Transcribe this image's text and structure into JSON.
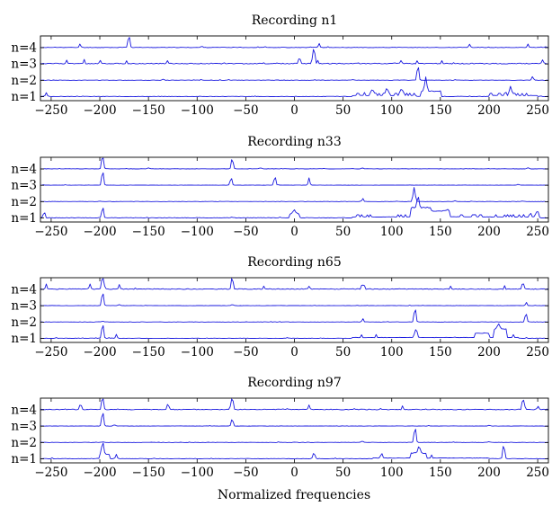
{
  "figure": {
    "xlabel": "Normalized frequencies"
  },
  "chart_data": [
    {
      "type": "line",
      "title": "Recording n1",
      "xlim": [
        -261,
        261
      ],
      "ticks": [
        -250,
        -200,
        -150,
        -100,
        -50,
        0,
        50,
        100,
        150,
        200,
        250
      ],
      "tick_labels": [
        "−250",
        "−200",
        "−150",
        "−100",
        "−50",
        "0",
        "50",
        "100",
        "150",
        "200",
        "250"
      ],
      "rows": [
        "n=4",
        "n=3",
        "n=2",
        "n=1"
      ],
      "series": [
        {
          "label": "n=4",
          "seed": 11,
          "noise": 0.07,
          "peaks": [
            [
              -170,
              0.9
            ],
            [
              -220,
              0.25
            ],
            [
              -95,
              0.2
            ],
            [
              25,
              0.3
            ],
            [
              180,
              0.25
            ],
            [
              240,
              0.25
            ],
            [
              -30,
              0.15
            ]
          ],
          "plateaus": []
        },
        {
          "label": "n=3",
          "seed": 12,
          "noise": 0.16,
          "peaks": [
            [
              20,
              1.15
            ],
            [
              5,
              0.35
            ],
            [
              -130,
              0.2
            ],
            [
              110,
              0.2
            ],
            [
              -200,
              0.2
            ],
            [
              255,
              0.3
            ]
          ],
          "plateaus": []
        },
        {
          "label": "n=2",
          "seed": 13,
          "noise": 0.06,
          "peaks": [
            [
              127,
              1.1
            ],
            [
              -135,
              0.2
            ],
            [
              245,
              0.3
            ],
            [
              60,
              0.12
            ]
          ],
          "plateaus": []
        },
        {
          "label": "n=1",
          "seed": 14,
          "noise": 0.08,
          "peaks": [
            [
              135,
              1.1
            ],
            [
              222,
              0.55
            ],
            [
              95,
              0.45
            ],
            [
              110,
              0.4
            ],
            [
              -255,
              0.3
            ],
            [
              80,
              0.35
            ]
          ],
          "plateaus": [
            [
              60,
              125,
              0.2
            ],
            [
              130,
              150,
              0.4
            ],
            [
              200,
              250,
              0.2
            ]
          ]
        }
      ]
    },
    {
      "type": "line",
      "title": "Recording n33",
      "xlim": [
        -261,
        261
      ],
      "ticks": [
        -250,
        -200,
        -150,
        -100,
        -50,
        0,
        50,
        100,
        150,
        200,
        250
      ],
      "tick_labels": [
        "−250",
        "−200",
        "−150",
        "−100",
        "−50",
        "0",
        "50",
        "100",
        "150",
        "200",
        "250"
      ],
      "rows": [
        "n=4",
        "n=3",
        "n=2",
        "n=1"
      ],
      "series": [
        {
          "label": "n=4",
          "seed": 21,
          "noise": 0.05,
          "peaks": [
            [
              -197,
              1.2
            ],
            [
              -64,
              0.8
            ],
            [
              -150,
              0.2
            ],
            [
              -35,
              0.2
            ],
            [
              70,
              0.15
            ],
            [
              240,
              0.2
            ]
          ],
          "plateaus": []
        },
        {
          "label": "n=3",
          "seed": 22,
          "noise": 0.05,
          "peaks": [
            [
              -197,
              1.1
            ],
            [
              -65,
              0.55
            ],
            [
              -20,
              0.65
            ],
            [
              15,
              0.55
            ],
            [
              230,
              0.15
            ]
          ],
          "plateaus": []
        },
        {
          "label": "n=2",
          "seed": 23,
          "noise": 0.05,
          "peaks": [
            [
              123,
              1.1
            ],
            [
              70,
              0.25
            ],
            [
              165,
              0.15
            ],
            [
              -200,
              0.1
            ]
          ],
          "plateaus": []
        },
        {
          "label": "n=1",
          "seed": 24,
          "noise": 0.09,
          "peaks": [
            [
              -197,
              0.8
            ],
            [
              127,
              0.95
            ],
            [
              0,
              0.3
            ],
            [
              250,
              0.45
            ],
            [
              -257,
              0.4
            ]
          ],
          "plateaus": [
            [
              -5,
              5,
              0.3
            ],
            [
              60,
              250,
              0.18
            ],
            [
              120,
              140,
              0.6
            ],
            [
              140,
              160,
              0.35
            ]
          ]
        }
      ]
    },
    {
      "type": "line",
      "title": "Recording n65",
      "xlim": [
        -261,
        261
      ],
      "ticks": [
        -250,
        -200,
        -150,
        -100,
        -50,
        0,
        50,
        100,
        150,
        200,
        250
      ],
      "tick_labels": [
        "−250",
        "−200",
        "−150",
        "−100",
        "−50",
        "0",
        "50",
        "100",
        "150",
        "200",
        "250"
      ],
      "rows": [
        "n=4",
        "n=3",
        "n=2",
        "n=1"
      ],
      "series": [
        {
          "label": "n=4",
          "seed": 31,
          "noise": 0.13,
          "peaks": [
            [
              -197,
              1.05
            ],
            [
              -64,
              0.95
            ],
            [
              -210,
              0.4
            ],
            [
              -180,
              0.35
            ],
            [
              70,
              0.35
            ],
            [
              235,
              0.45
            ],
            [
              15,
              0.25
            ],
            [
              -255,
              0.3
            ]
          ],
          "plateaus": []
        },
        {
          "label": "n=3",
          "seed": 32,
          "noise": 0.05,
          "peaks": [
            [
              -197,
              1.05
            ],
            [
              -180,
              0.2
            ],
            [
              -64,
              0.2
            ],
            [
              238,
              0.25
            ]
          ],
          "plateaus": []
        },
        {
          "label": "n=2",
          "seed": 33,
          "noise": 0.05,
          "peaks": [
            [
              124,
              1.05
            ],
            [
              238,
              0.65
            ],
            [
              70,
              0.25
            ],
            [
              -197,
              0.15
            ]
          ],
          "plateaus": []
        },
        {
          "label": "n=1",
          "seed": 34,
          "noise": 0.07,
          "peaks": [
            [
              -197,
              1.1
            ],
            [
              125,
              0.6
            ],
            [
              210,
              0.45
            ],
            [
              -183,
              0.3
            ]
          ],
          "plateaus": [
            [
              60,
              230,
              0.15
            ],
            [
              205,
              218,
              0.55
            ],
            [
              185,
              200,
              0.25
            ]
          ]
        }
      ]
    },
    {
      "type": "line",
      "title": "Recording n97",
      "xlim": [
        -261,
        261
      ],
      "ticks": [
        -250,
        -200,
        -150,
        -100,
        -50,
        0,
        50,
        100,
        150,
        200,
        250
      ],
      "tick_labels": [
        "−250",
        "−200",
        "−150",
        "−100",
        "−50",
        "0",
        "50",
        "100",
        "150",
        "200",
        "250"
      ],
      "rows": [
        "n=4",
        "n=3",
        "n=2",
        "n=1"
      ],
      "series": [
        {
          "label": "n=4",
          "seed": 41,
          "noise": 0.13,
          "peaks": [
            [
              -197,
              0.9
            ],
            [
              -64,
              1.05
            ],
            [
              -220,
              0.35
            ],
            [
              235,
              0.8
            ],
            [
              15,
              0.3
            ],
            [
              -130,
              0.25
            ],
            [
              250,
              0.3
            ]
          ],
          "plateaus": []
        },
        {
          "label": "n=3",
          "seed": 42,
          "noise": 0.06,
          "peaks": [
            [
              -197,
              1.1
            ],
            [
              -64,
              0.55
            ],
            [
              -185,
              0.2
            ],
            [
              200,
              0.12
            ]
          ],
          "plateaus": []
        },
        {
          "label": "n=2",
          "seed": 43,
          "noise": 0.05,
          "peaks": [
            [
              124,
              1.15
            ],
            [
              70,
              0.2
            ],
            [
              -197,
              0.12
            ],
            [
              200,
              0.15
            ]
          ],
          "plateaus": []
        },
        {
          "label": "n=1",
          "seed": 44,
          "noise": 0.08,
          "peaks": [
            [
              -197,
              0.95
            ],
            [
              128,
              0.6
            ],
            [
              20,
              0.45
            ],
            [
              215,
              1.1
            ],
            [
              -183,
              0.3
            ],
            [
              90,
              0.3
            ]
          ],
          "plateaus": [
            [
              -200,
              -190,
              0.35
            ],
            [
              80,
              200,
              0.12
            ],
            [
              120,
              135,
              0.3
            ]
          ]
        }
      ]
    }
  ]
}
